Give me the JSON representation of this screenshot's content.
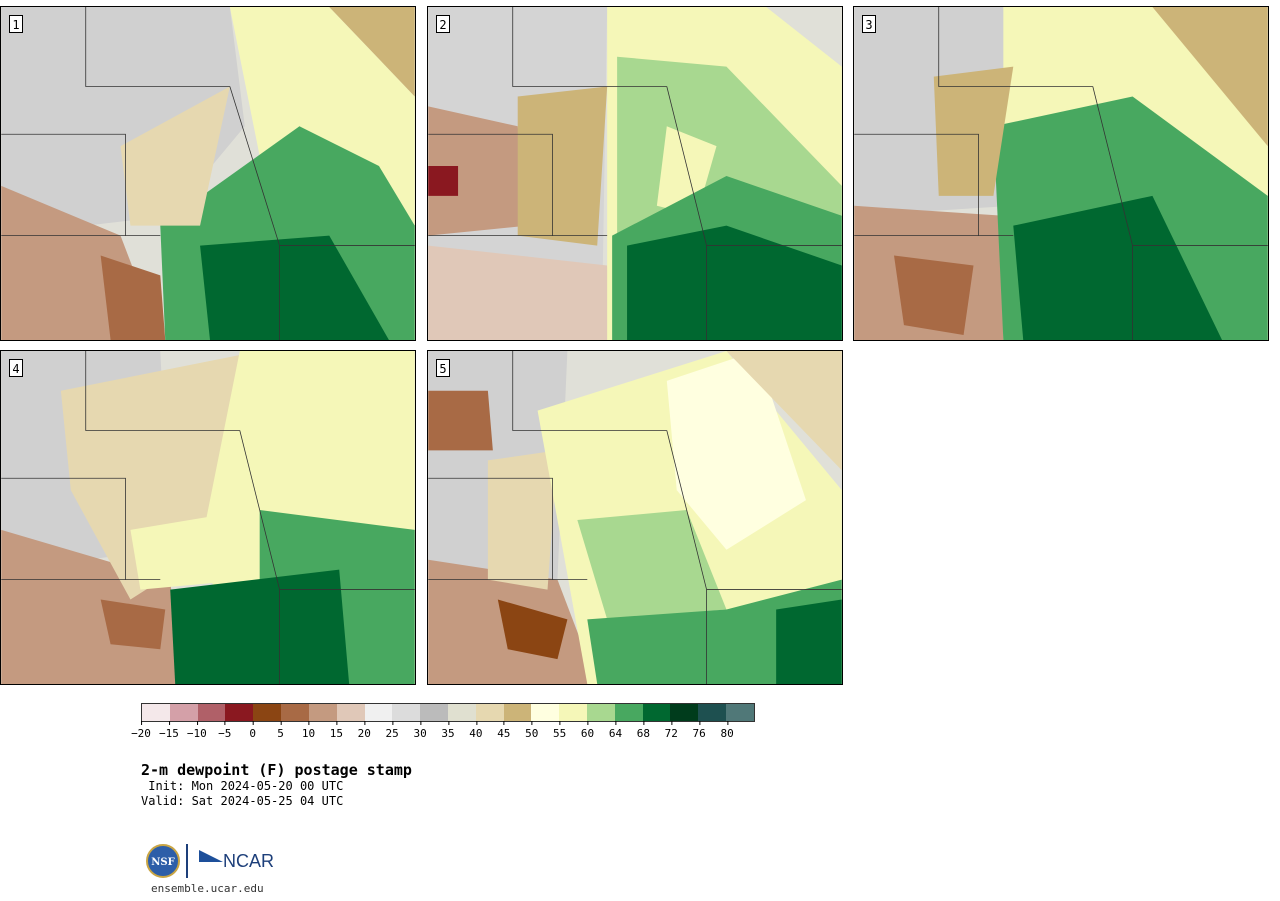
{
  "panels": [
    {
      "label": "1"
    },
    {
      "label": "2"
    },
    {
      "label": "3"
    },
    {
      "label": "4"
    },
    {
      "label": "5"
    }
  ],
  "colorbar": {
    "colors": [
      "#f4e8ea",
      "#d4a0a8",
      "#b06068",
      "#8a1820",
      "#8b4513",
      "#a86a45",
      "#c49a80",
      "#e0c8b8",
      "#f0f0f0",
      "#dcdcdc",
      "#bbbbbb",
      "#e0e0d0",
      "#e6d8b0",
      "#ccb478",
      "#ffffe0",
      "#f5f7b8",
      "#a8d890",
      "#48a860",
      "#006830",
      "#003c1c",
      "#1e5050",
      "#507878"
    ],
    "ticks": [
      "−20",
      "−15",
      "−10",
      "−5",
      "0",
      "5",
      "10",
      "15",
      "20",
      "25",
      "30",
      "35",
      "40",
      "45",
      "50",
      "55",
      "60",
      "64",
      "68",
      "72",
      "76",
      "80"
    ]
  },
  "title": "2-m dewpoint (F) postage stamp",
  "init": " Init: Mon 2024-05-20 00 UTC",
  "valid": "Valid: Sat 2024-05-25 04 UTC",
  "logos": {
    "nsf": "NSF",
    "ncar": "NCAR"
  },
  "url": "ensemble.ucar.edu"
}
